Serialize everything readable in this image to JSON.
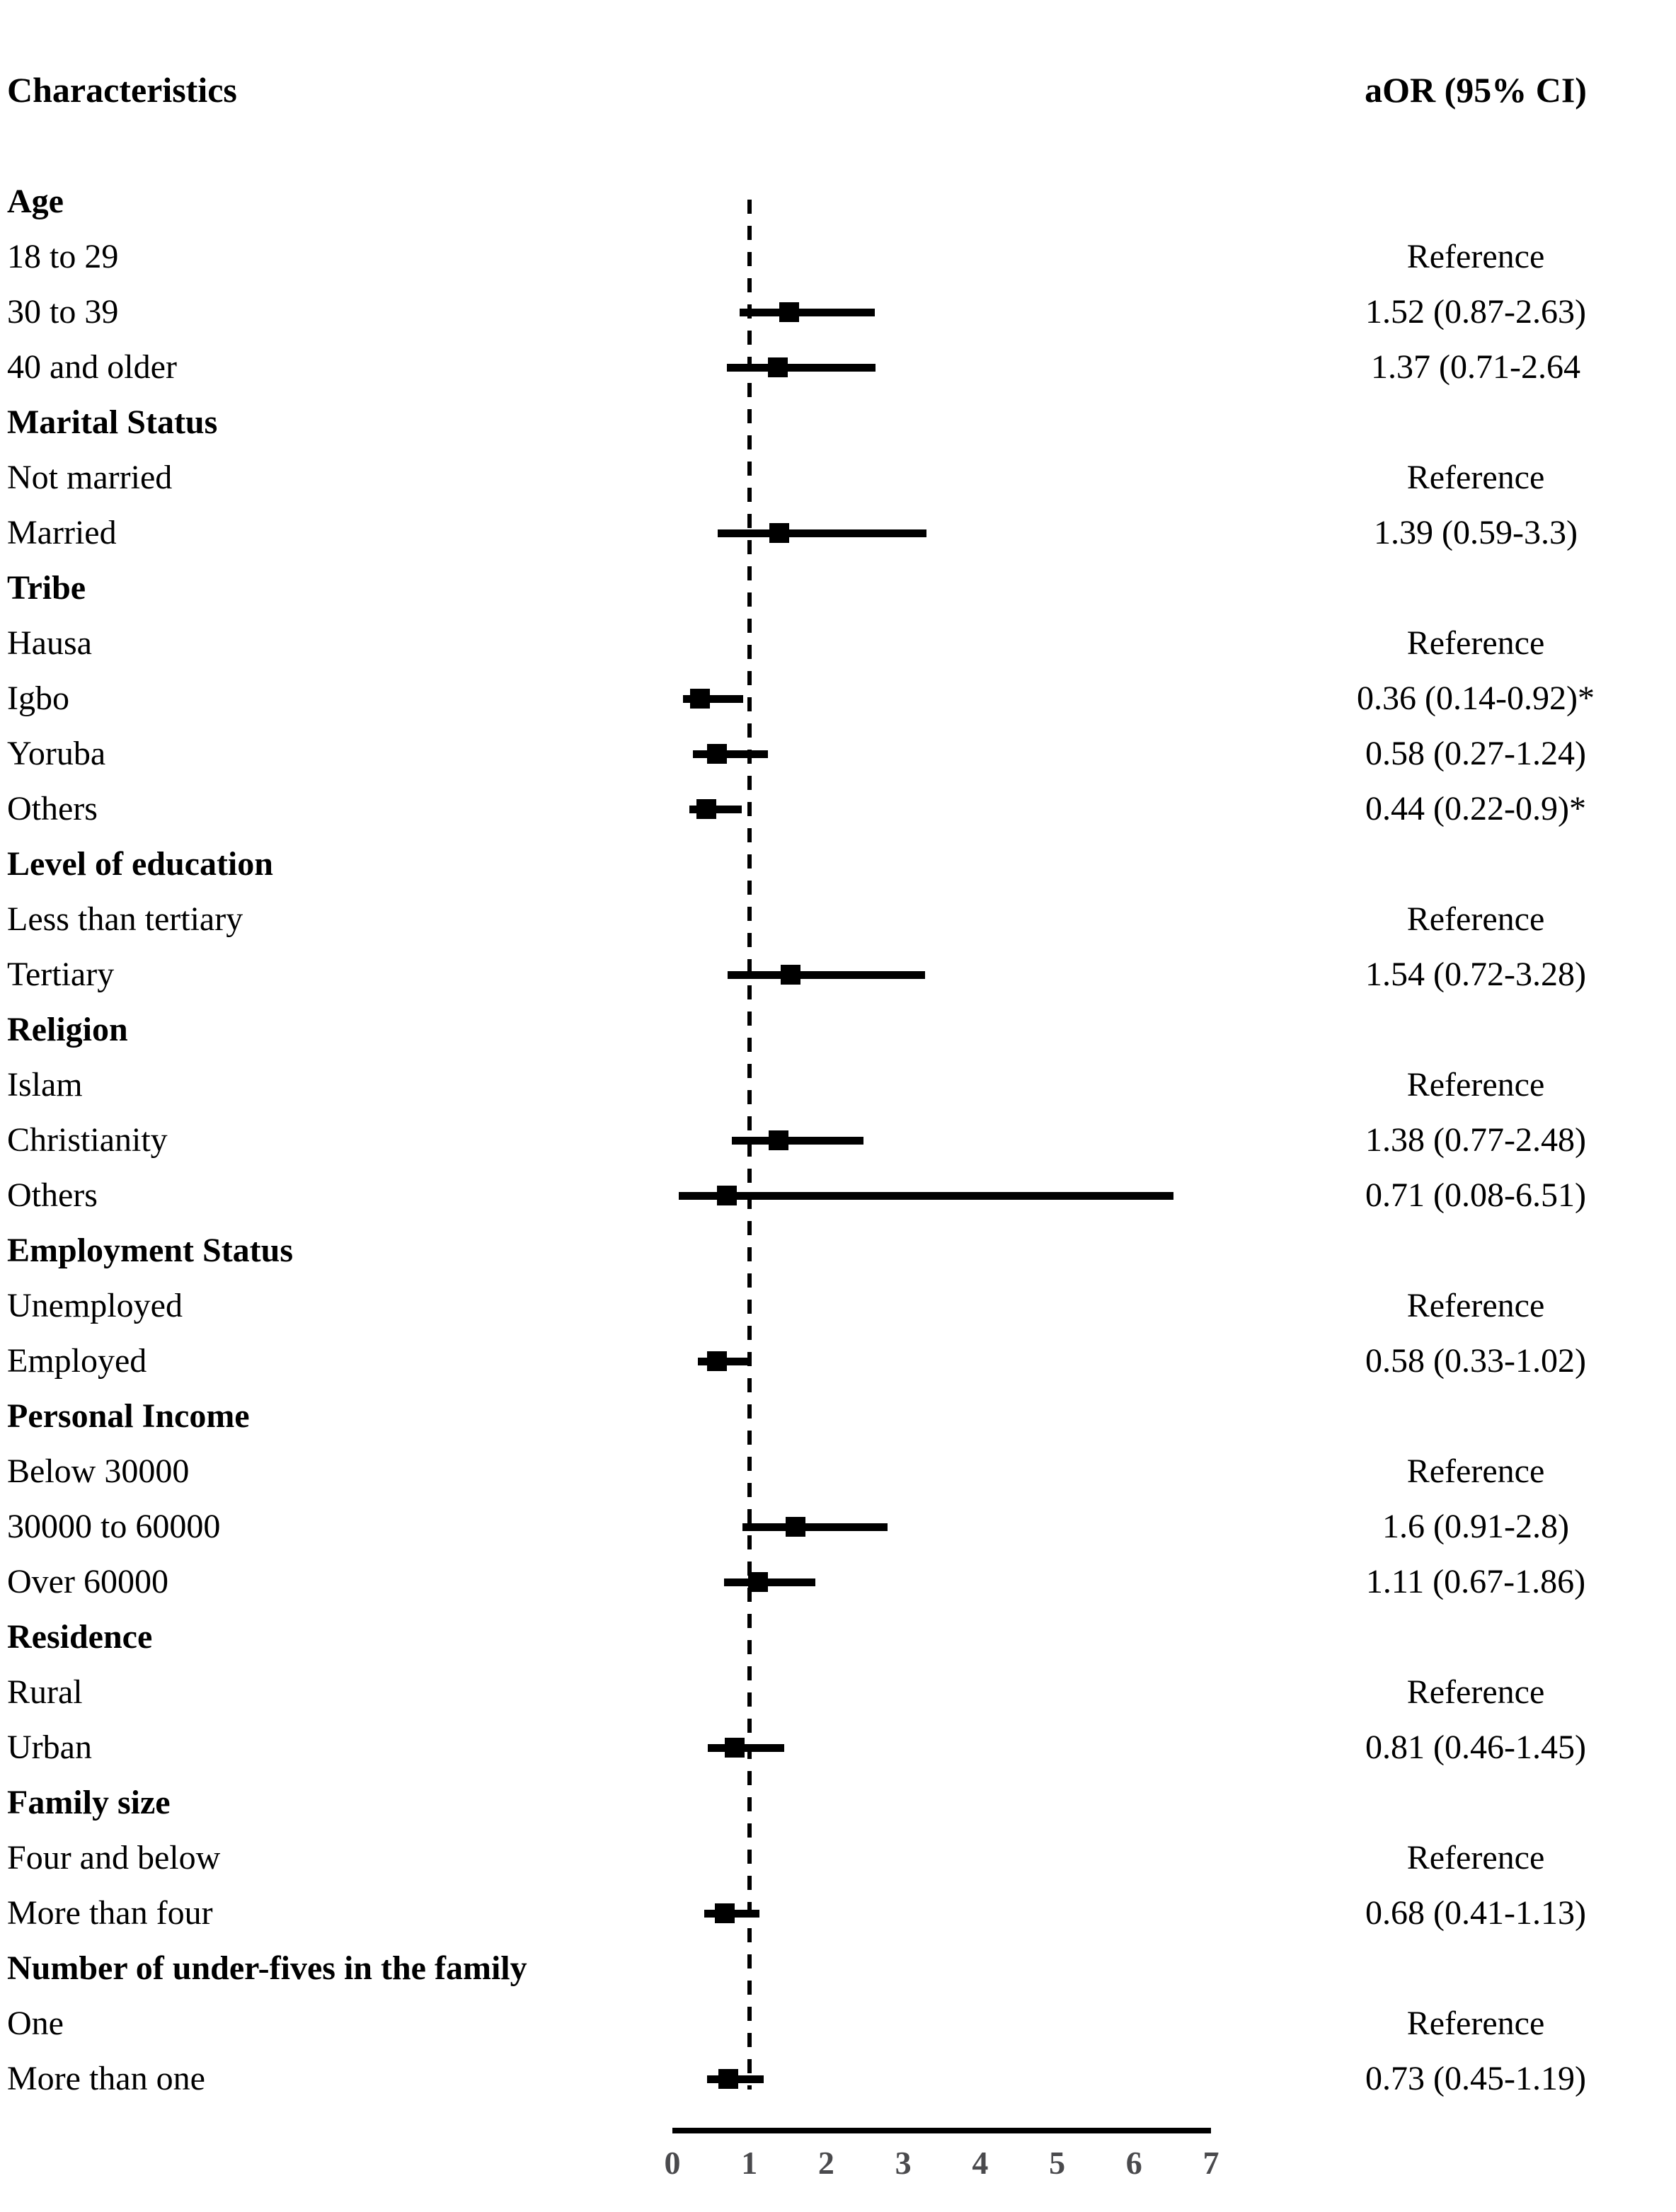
{
  "header": {
    "characteristics": "Characteristics",
    "aor": "aOR (95% CI)"
  },
  "colors": {
    "text": "#000000",
    "marker": "#000000",
    "ci_line": "#000000",
    "axis_line": "#000000",
    "tick_label": "#4a4a4d"
  },
  "chart_data": {
    "type": "forest",
    "xlim": [
      0,
      7
    ],
    "x_ticks": [
      0,
      1,
      2,
      3,
      4,
      5,
      6,
      7
    ],
    "reference_line_x": 1,
    "legend": "none",
    "grid": "off",
    "rows": [
      {
        "label": "Age",
        "kind": "group"
      },
      {
        "label": "18 to 29",
        "kind": "item",
        "value_text": "Reference"
      },
      {
        "label": "30 to 39",
        "kind": "item",
        "value_text": "1.52 (0.87-2.63)",
        "est": 1.52,
        "lo": 0.87,
        "hi": 2.63
      },
      {
        "label": "40 and older",
        "kind": "item",
        "value_text": "1.37 (0.71-2.64",
        "est": 1.37,
        "lo": 0.71,
        "hi": 2.64
      },
      {
        "label": "Marital Status",
        "kind": "group"
      },
      {
        "label": "Not married",
        "kind": "item",
        "value_text": "Reference"
      },
      {
        "label": "Married",
        "kind": "item",
        "value_text": "1.39 (0.59-3.3)",
        "est": 1.39,
        "lo": 0.59,
        "hi": 3.3
      },
      {
        "label": "Tribe",
        "kind": "group"
      },
      {
        "label": "Hausa",
        "kind": "item",
        "value_text": "Reference"
      },
      {
        "label": "Igbo",
        "kind": "item",
        "value_text": "0.36 (0.14-0.92)*",
        "est": 0.36,
        "lo": 0.14,
        "hi": 0.92
      },
      {
        "label": "Yoruba",
        "kind": "item",
        "value_text": "0.58 (0.27-1.24)",
        "est": 0.58,
        "lo": 0.27,
        "hi": 1.24
      },
      {
        "label": "Others",
        "kind": "item",
        "value_text": "0.44 (0.22-0.9)*",
        "est": 0.44,
        "lo": 0.22,
        "hi": 0.9
      },
      {
        "label": "Level of education",
        "kind": "group"
      },
      {
        "label": "Less than tertiary",
        "kind": "item",
        "value_text": "Reference"
      },
      {
        "label": "Tertiary",
        "kind": "item",
        "value_text": "1.54 (0.72-3.28)",
        "est": 1.54,
        "lo": 0.72,
        "hi": 3.28
      },
      {
        "label": "Religion",
        "kind": "group"
      },
      {
        "label": "Islam",
        "kind": "item",
        "value_text": "Reference"
      },
      {
        "label": "Christianity",
        "kind": "item",
        "value_text": "1.38 (0.77-2.48)",
        "est": 1.38,
        "lo": 0.77,
        "hi": 2.48
      },
      {
        "label": "Others",
        "kind": "item",
        "value_text": "0.71 (0.08-6.51)",
        "est": 0.71,
        "lo": 0.08,
        "hi": 6.51
      },
      {
        "label": "Employment Status",
        "kind": "group"
      },
      {
        "label": "Unemployed",
        "kind": "item",
        "value_text": "Reference"
      },
      {
        "label": "Employed",
        "kind": "item",
        "value_text": "0.58 (0.33-1.02)",
        "est": 0.58,
        "lo": 0.33,
        "hi": 1.02
      },
      {
        "label": "Personal Income",
        "kind": "group"
      },
      {
        "label": "Below 30000",
        "kind": "item",
        "value_text": "Reference"
      },
      {
        "label": "30000 to 60000",
        "kind": "item",
        "value_text": "1.6 (0.91-2.8)",
        "est": 1.6,
        "lo": 0.91,
        "hi": 2.8
      },
      {
        "label": "Over 60000",
        "kind": "item",
        "value_text": "1.11 (0.67-1.86)",
        "est": 1.11,
        "lo": 0.67,
        "hi": 1.86
      },
      {
        "label": "Residence",
        "kind": "group"
      },
      {
        "label": "Rural",
        "kind": "item",
        "value_text": "Reference"
      },
      {
        "label": "Urban",
        "kind": "item",
        "value_text": "0.81 (0.46-1.45)",
        "est": 0.81,
        "lo": 0.46,
        "hi": 1.45
      },
      {
        "label": "Family size",
        "kind": "group"
      },
      {
        "label": "Four and below",
        "kind": "item",
        "value_text": "Reference"
      },
      {
        "label": "More than four",
        "kind": "item",
        "value_text": "0.68 (0.41-1.13)",
        "est": 0.68,
        "lo": 0.41,
        "hi": 1.13
      },
      {
        "label": "Number of under-fives in the family",
        "kind": "group"
      },
      {
        "label": "One",
        "kind": "item",
        "value_text": "Reference"
      },
      {
        "label": "More than one",
        "kind": "item",
        "value_text": "0.73 (0.45-1.19)",
        "est": 0.73,
        "lo": 0.45,
        "hi": 1.19
      }
    ]
  }
}
